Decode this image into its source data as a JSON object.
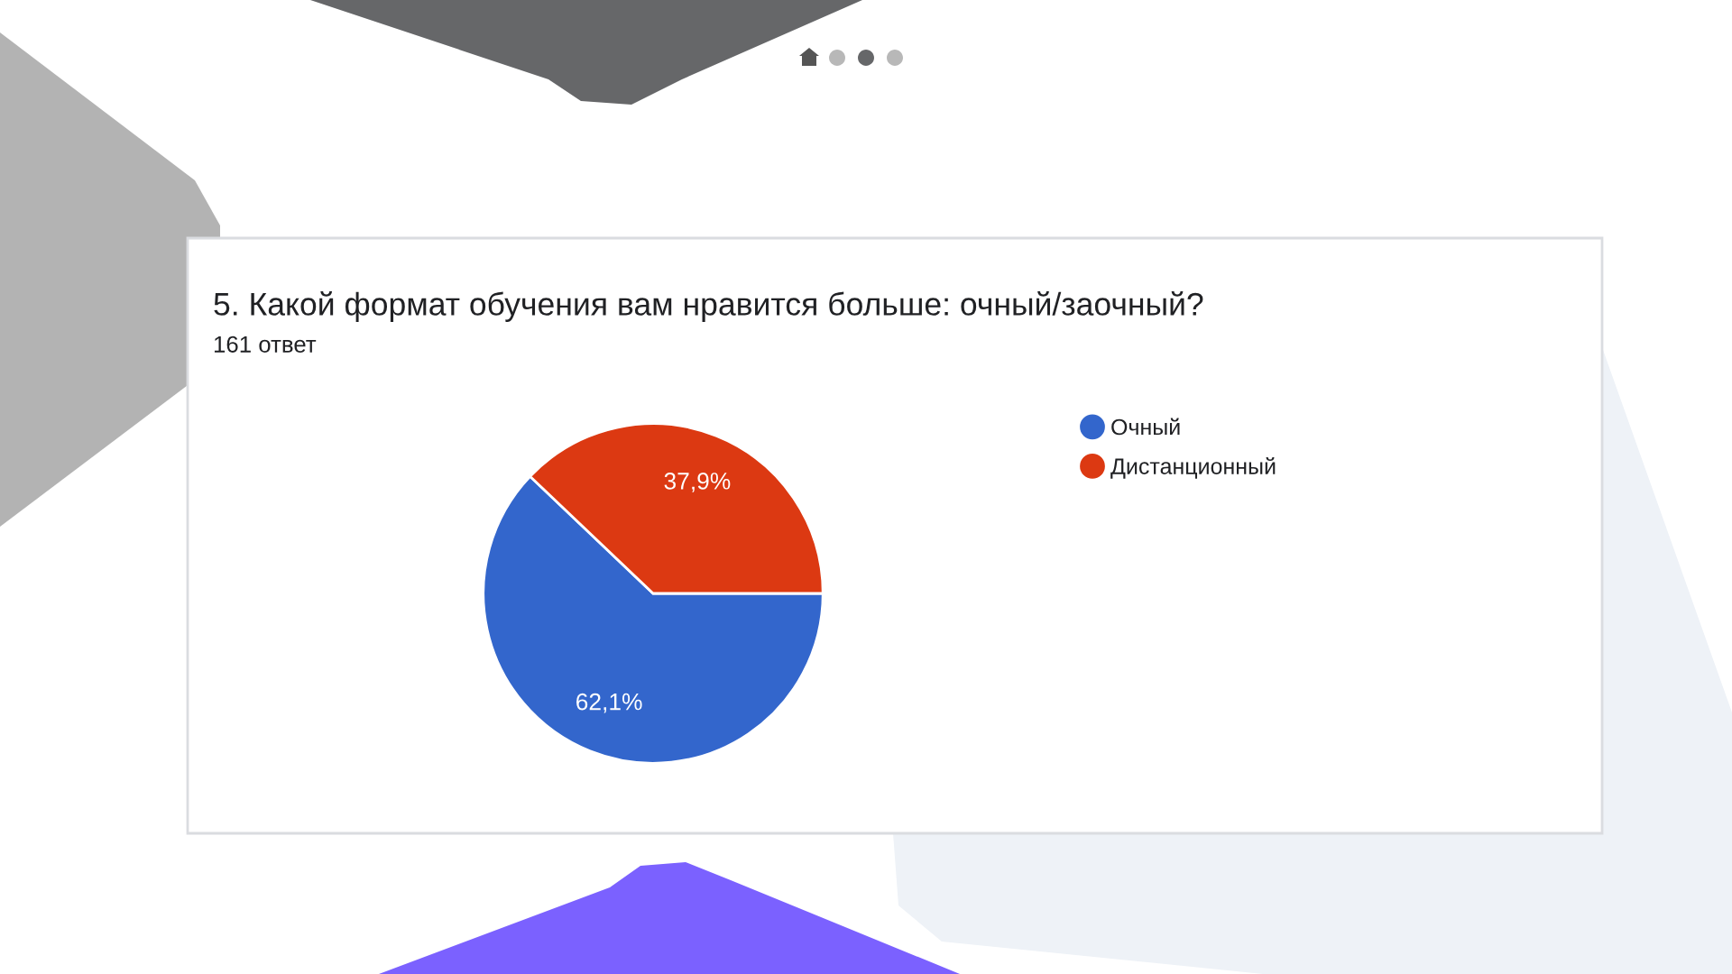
{
  "chart_data": {
    "type": "pie",
    "title": "5. Какой формат обучения вам нравится больше: очный/заочный?",
    "subtitle": "161 ответ",
    "categories": [
      "Очный",
      "Дистанционный"
    ],
    "values": [
      62.1,
      37.9
    ],
    "colors": [
      "#3366cc",
      "#dc3912"
    ],
    "value_labels": [
      "62,1%",
      "37,9%"
    ],
    "legend": "right"
  }
}
